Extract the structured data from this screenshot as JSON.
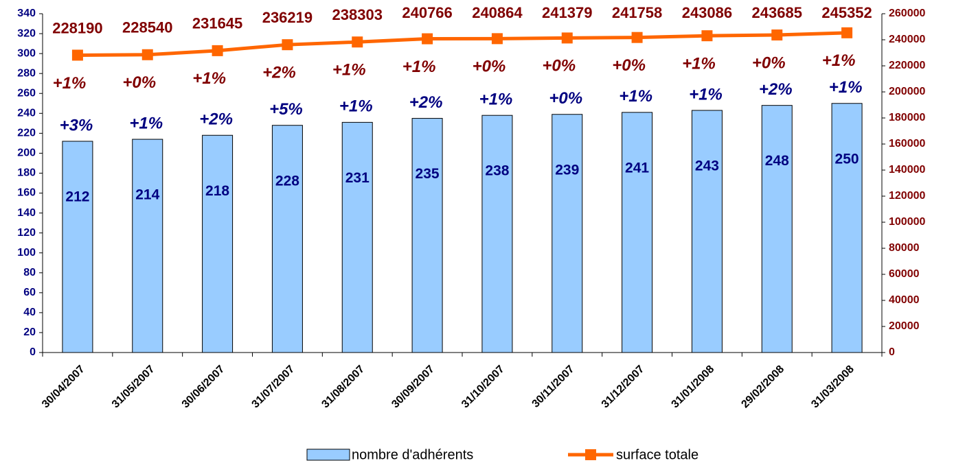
{
  "chart_data": {
    "type": "bar_line",
    "categories": [
      "30/04/2007",
      "31/05/2007",
      "30/06/2007",
      "31/07/2007",
      "31/08/2007",
      "30/09/2007",
      "31/10/2007",
      "30/11/2007",
      "31/12/2007",
      "31/01/2008",
      "29/02/2008",
      "31/03/2008"
    ],
    "series": [
      {
        "name": "nombre d'adhérents",
        "type": "bar",
        "color": "#99ccff",
        "values": [
          212,
          214,
          218,
          228,
          231,
          235,
          238,
          239,
          241,
          243,
          248,
          250
        ],
        "change_labels": [
          "+3%",
          "+1%",
          "+2%",
          "+5%",
          "+1%",
          "+2%",
          "+1%",
          "+0%",
          "+1%",
          "+1%",
          "+2%",
          "+1%"
        ]
      },
      {
        "name": "surface totale",
        "type": "line",
        "axis": "y2",
        "color": "#ff6600",
        "values": [
          228190,
          228540,
          231645,
          236219,
          238303,
          240766,
          240864,
          241379,
          241758,
          243086,
          243685,
          245352
        ],
        "change_labels": [
          "+1%",
          "+0%",
          "+1%",
          "+2%",
          "+1%",
          "+1%",
          "+0%",
          "+0%",
          "+0%",
          "+1%",
          "+0%",
          "+1%"
        ]
      }
    ],
    "ylim": [
      0,
      340
    ],
    "yticks": [
      0,
      20,
      40,
      60,
      80,
      100,
      120,
      140,
      160,
      180,
      200,
      220,
      240,
      260,
      280,
      300,
      320,
      340
    ],
    "y2lim": [
      0,
      260000
    ],
    "y2ticks": [
      0,
      20000,
      40000,
      60000,
      80000,
      100000,
      120000,
      140000,
      160000,
      180000,
      200000,
      220000,
      240000,
      260000
    ],
    "legend": "bottom"
  }
}
